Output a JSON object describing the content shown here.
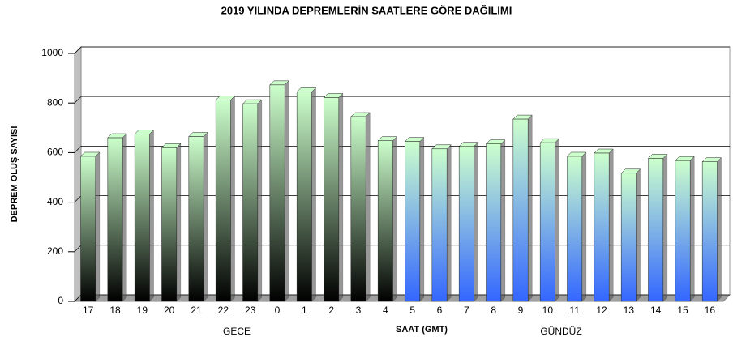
{
  "chart_data": {
    "type": "bar",
    "title": "2019 YILINDA DEPREMLERİN SAATLERE GÖRE DAĞILIMI",
    "x_label": "SAAT (GMT)",
    "y_label": "DEPREM OLUŞ SAYISI",
    "categories": [
      "17",
      "18",
      "19",
      "20",
      "21",
      "22",
      "23",
      "0",
      "1",
      "2",
      "3",
      "4",
      "5",
      "6",
      "7",
      "8",
      "9",
      "10",
      "11",
      "12",
      "13",
      "14",
      "15",
      "16"
    ],
    "series": [
      {
        "name": "GECE",
        "color": "#ccffcc",
        "color_bottom": "#000000",
        "values": [
          585,
          660,
          675,
          620,
          665,
          812,
          797,
          873,
          845,
          822,
          745,
          648,
          null,
          null,
          null,
          null,
          null,
          null,
          null,
          null,
          null,
          null,
          null,
          null
        ]
      },
      {
        "name": "GÜNDÜZ",
        "color": "#ccffcc",
        "color_bottom": "#3366ff",
        "values": [
          null,
          null,
          null,
          null,
          null,
          null,
          null,
          null,
          null,
          null,
          null,
          null,
          645,
          615,
          625,
          635,
          735,
          640,
          585,
          598,
          517,
          577,
          568,
          563
        ]
      }
    ],
    "ylim": [
      0,
      1000
    ],
    "yticks": [
      0,
      200,
      400,
      600,
      800,
      1000
    ],
    "grid": true
  }
}
